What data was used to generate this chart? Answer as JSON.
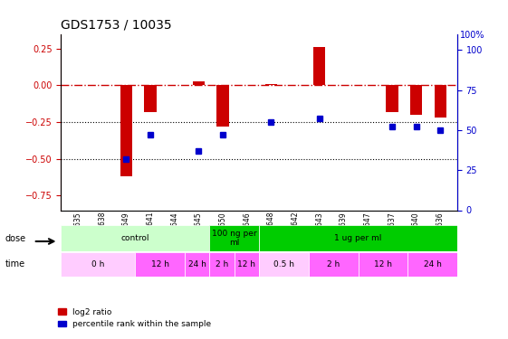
{
  "title": "GDS1753 / 10035",
  "samples": [
    "GSM93635",
    "GSM93638",
    "GSM93649",
    "GSM93641",
    "GSM93644",
    "GSM93645",
    "GSM93650",
    "GSM93646",
    "GSM93648",
    "GSM93642",
    "GSM93643",
    "GSM93639",
    "GSM93647",
    "GSM93637",
    "GSM93640",
    "GSM93636"
  ],
  "log2_ratio": [
    0.0,
    0.0,
    -0.62,
    -0.18,
    0.0,
    0.03,
    -0.28,
    0.0,
    0.01,
    0.0,
    0.26,
    0.0,
    0.0,
    -0.18,
    -0.2,
    -0.22
  ],
  "percentile": [
    null,
    null,
    32,
    47,
    null,
    37,
    47,
    null,
    55,
    null,
    57,
    null,
    null,
    52,
    52,
    50
  ],
  "ylim_left": [
    -0.85,
    0.35
  ],
  "ylim_right": [
    0,
    110
  ],
  "yticks_left": [
    0.25,
    0.0,
    -0.25,
    -0.5,
    -0.75
  ],
  "yticks_right": [
    100,
    75,
    50,
    25,
    0
  ],
  "dose_groups": [
    {
      "label": "control",
      "start": 0,
      "end": 6,
      "color": "#ccffcc"
    },
    {
      "label": "100 ng per\nml",
      "start": 6,
      "end": 8,
      "color": "#00cc00"
    },
    {
      "label": "1 ug per ml",
      "start": 8,
      "end": 16,
      "color": "#00cc00"
    }
  ],
  "time_groups": [
    {
      "label": "0 h",
      "start": 0,
      "end": 3,
      "color": "#ffccff"
    },
    {
      "label": "12 h",
      "start": 3,
      "end": 5,
      "color": "#ff66ff"
    },
    {
      "label": "24 h",
      "start": 5,
      "end": 6,
      "color": "#ff66ff"
    },
    {
      "label": "2 h",
      "start": 6,
      "end": 7,
      "color": "#ff66ff"
    },
    {
      "label": "12 h",
      "start": 7,
      "end": 8,
      "color": "#ff66ff"
    },
    {
      "label": "0.5 h",
      "start": 8,
      "end": 10,
      "color": "#ffccff"
    },
    {
      "label": "2 h",
      "start": 10,
      "end": 12,
      "color": "#ff66ff"
    },
    {
      "label": "12 h",
      "start": 12,
      "end": 14,
      "color": "#ff66ff"
    },
    {
      "label": "24 h",
      "start": 14,
      "end": 16,
      "color": "#ff66ff"
    }
  ],
  "bar_color": "#cc0000",
  "dot_color": "#0000cc",
  "hline_color": "#cc0000",
  "hline_style": "-.",
  "dotted_color": "black",
  "legend_items": [
    "log2 ratio",
    "percentile rank within the sample"
  ],
  "dose_label": "dose",
  "time_label": "time"
}
